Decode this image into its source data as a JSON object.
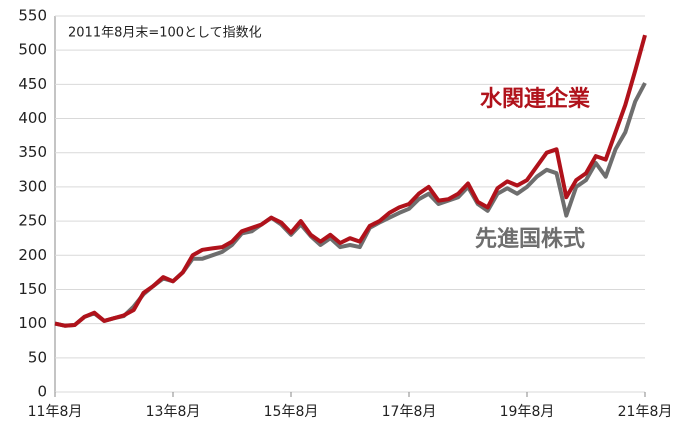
{
  "chart_data": {
    "type": "line",
    "annotation": "2011年8月末=100として指数化",
    "categories": [
      "11年8月",
      null,
      null,
      null,
      null,
      null,
      null,
      null,
      null,
      null,
      null,
      null,
      "13年8月",
      null,
      null,
      null,
      null,
      null,
      null,
      null,
      null,
      null,
      null,
      null,
      "15年8月",
      null,
      null,
      null,
      null,
      null,
      null,
      null,
      null,
      null,
      null,
      null,
      "17年8月",
      null,
      null,
      null,
      null,
      null,
      null,
      null,
      null,
      null,
      null,
      null,
      "19年8月",
      null,
      null,
      null,
      null,
      null,
      null,
      null,
      null,
      null,
      null,
      null,
      "21年8月"
    ],
    "series": [
      {
        "name": "水関連企業",
        "color": "#b0121b",
        "values": [
          100,
          97,
          98,
          110,
          116,
          104,
          108,
          112,
          120,
          145,
          155,
          168,
          162,
          175,
          200,
          208,
          210,
          212,
          220,
          235,
          240,
          245,
          255,
          248,
          233,
          250,
          230,
          220,
          230,
          218,
          225,
          220,
          243,
          250,
          262,
          270,
          275,
          290,
          300,
          280,
          282,
          290,
          305,
          278,
          270,
          298,
          308,
          302,
          310,
          330,
          350,
          355,
          285,
          310,
          320,
          345,
          340,
          380,
          420,
          470,
          522
        ]
      },
      {
        "name": "先進国株式",
        "color": "#6e6e6e",
        "values": [
          100,
          97,
          98,
          110,
          115,
          104,
          108,
          111,
          125,
          143,
          155,
          166,
          162,
          175,
          195,
          195,
          200,
          205,
          215,
          232,
          235,
          245,
          255,
          245,
          230,
          245,
          228,
          215,
          225,
          212,
          215,
          212,
          240,
          248,
          255,
          262,
          268,
          282,
          290,
          275,
          280,
          285,
          300,
          275,
          265,
          290,
          298,
          290,
          300,
          315,
          325,
          320,
          258,
          300,
          310,
          335,
          315,
          355,
          380,
          425,
          452
        ]
      }
    ],
    "ylim": [
      0,
      550
    ],
    "yticks": [
      0,
      50,
      100,
      150,
      200,
      250,
      300,
      350,
      400,
      450,
      500,
      550
    ],
    "grid": true
  }
}
